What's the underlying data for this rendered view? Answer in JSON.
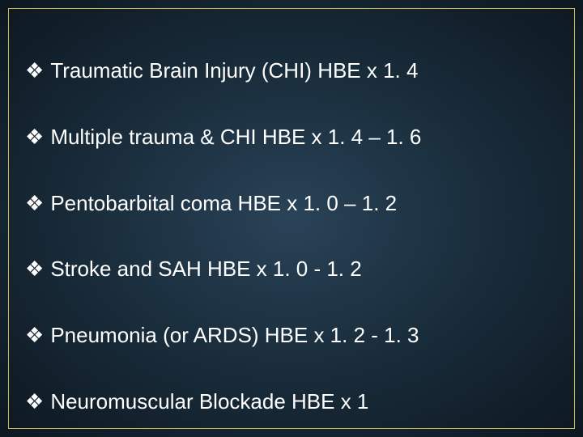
{
  "slide": {
    "background_gradient": {
      "center": "#2a4358",
      "mid": "#1a2e3d",
      "edge": "#0d1720"
    },
    "border_color": "#c9b84a",
    "text_color": "#ffffff",
    "font_family": "Arial",
    "font_size_pt": 20,
    "bullet_glyph": "❖",
    "bullets": [
      {
        "text": "Traumatic Brain Injury (CHI) HBE x 1. 4"
      },
      {
        "text": "Multiple trauma & CHI HBE x 1. 4 – 1. 6"
      },
      {
        "text": "Pentobarbital coma HBE x 1. 0 – 1. 2"
      },
      {
        "text": "Stroke and SAH HBE x 1. 0 - 1. 2"
      },
      {
        "text": "Pneumonia (or ARDS) HBE x 1. 2 - 1. 3"
      },
      {
        "text": "Neuromuscular Blockade HBE x 1"
      }
    ]
  }
}
